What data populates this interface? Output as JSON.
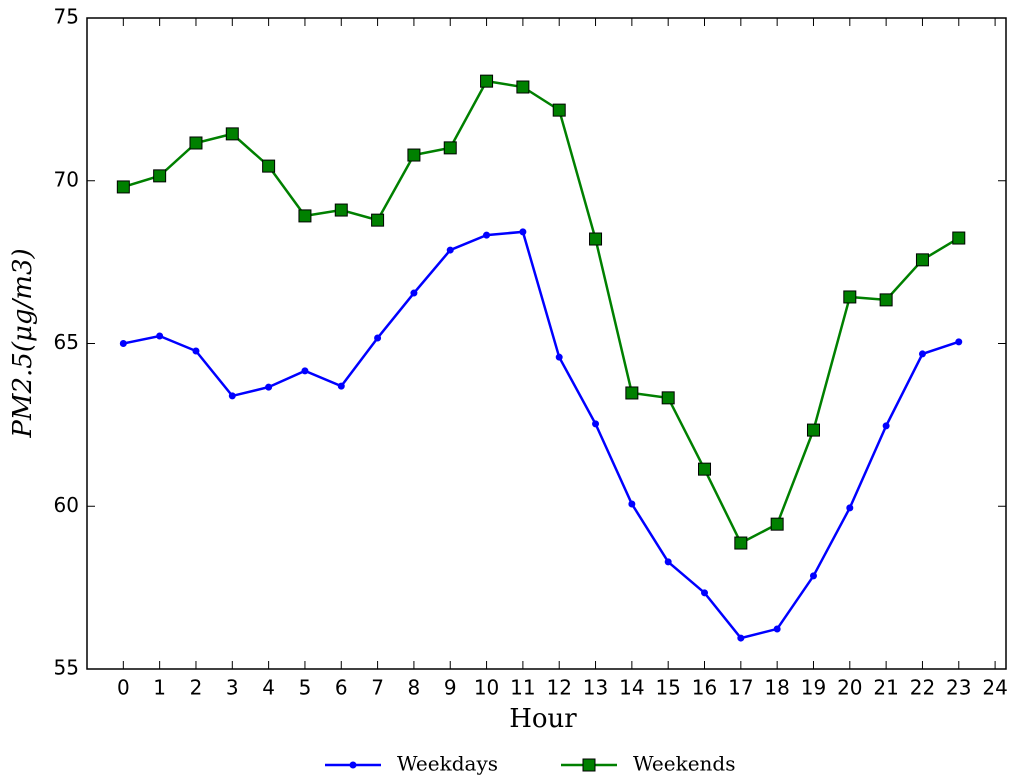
{
  "chart_data": {
    "type": "line",
    "xlabel": "Hour",
    "ylabel": "PM2.5(μg/m3)",
    "x": [
      0,
      1,
      2,
      3,
      4,
      5,
      6,
      7,
      8,
      9,
      10,
      11,
      12,
      13,
      14,
      15,
      16,
      17,
      18,
      19,
      20,
      21,
      22,
      23
    ],
    "series": [
      {
        "name": "Weekdays",
        "color": "#0000ff",
        "marker": "circle",
        "values": [
          65.0,
          65.23,
          64.77,
          63.39,
          63.66,
          64.16,
          63.69,
          65.17,
          66.55,
          67.87,
          68.33,
          68.43,
          64.58,
          62.53,
          60.07,
          58.29,
          57.34,
          55.95,
          56.23,
          57.86,
          59.95,
          62.47,
          64.68,
          65.05
        ]
      },
      {
        "name": "Weekends",
        "color": "#008000",
        "marker": "square",
        "values": [
          69.81,
          70.15,
          71.16,
          71.44,
          70.45,
          68.92,
          69.1,
          68.79,
          70.79,
          71.01,
          73.06,
          72.88,
          72.17,
          68.21,
          63.48,
          63.33,
          61.14,
          58.87,
          59.45,
          62.34,
          66.43,
          66.34,
          67.57,
          68.24
        ]
      }
    ],
    "xlim": [
      -1,
      24.3
    ],
    "xticks": [
      0,
      1,
      2,
      3,
      4,
      5,
      6,
      7,
      8,
      9,
      10,
      11,
      12,
      13,
      14,
      15,
      16,
      17,
      18,
      19,
      20,
      21,
      22,
      23,
      24
    ],
    "ylim": [
      55,
      75
    ],
    "yticks": [
      55,
      60,
      65,
      70,
      75
    ],
    "grid": false,
    "legend": "bottom"
  }
}
